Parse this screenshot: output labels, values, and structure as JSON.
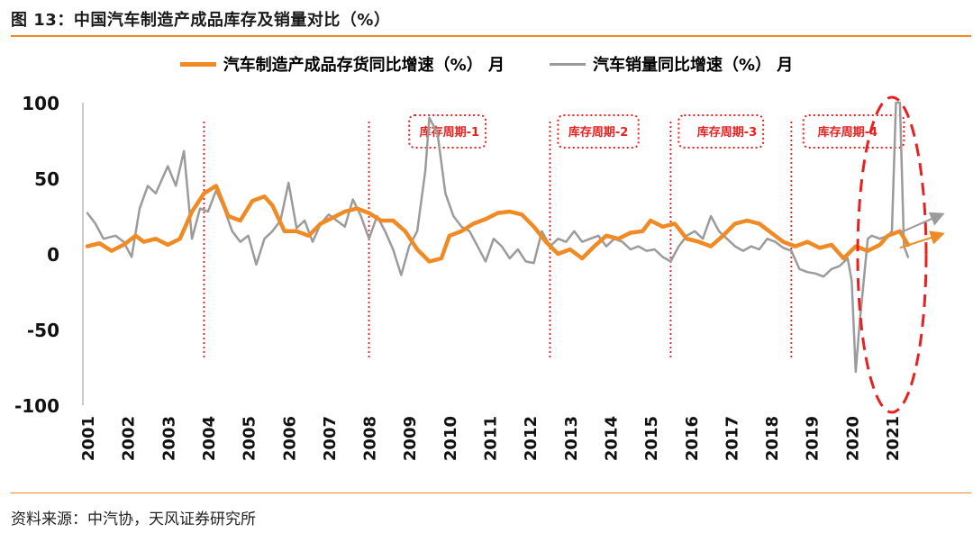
{
  "figure": {
    "title": "图 13：中国汽车制造产成品库存及销量对比（%）",
    "source": "资料来源：中汽协，天风证券研究所"
  },
  "colors": {
    "accent": "#f08a24",
    "inventory": "#f08a24",
    "sales": "#9b9b9b",
    "annotation": "#e8201f"
  },
  "chart_data": {
    "type": "line",
    "title": "",
    "xlabel": "",
    "ylabel": "",
    "ylim": [
      -100,
      100
    ],
    "yticks": [
      "100",
      "50",
      "0",
      "-50",
      "-100"
    ],
    "ytick_values": [
      100,
      50,
      0,
      -50,
      -100
    ],
    "xticks": [
      "2001",
      "2002",
      "2003",
      "2004",
      "2005",
      "2006",
      "2007",
      "2008",
      "2009",
      "2010",
      "2011",
      "2012",
      "2013",
      "2014",
      "2015",
      "2016",
      "2017",
      "2018",
      "2019",
      "2020",
      "2021"
    ],
    "legend_position": "top-center",
    "grid": false,
    "series": [
      {
        "name": "汽车制造产成品存货同比增速（%） 月",
        "color": "#f08a24",
        "points": [
          [
            2001.0,
            5
          ],
          [
            2001.3,
            7
          ],
          [
            2001.6,
            2
          ],
          [
            2001.9,
            6
          ],
          [
            2002.2,
            12
          ],
          [
            2002.4,
            8
          ],
          [
            2002.7,
            10
          ],
          [
            2003.0,
            6
          ],
          [
            2003.3,
            10
          ],
          [
            2003.6,
            28
          ],
          [
            2003.9,
            40
          ],
          [
            2004.2,
            45
          ],
          [
            2004.5,
            25
          ],
          [
            2004.8,
            22
          ],
          [
            2005.1,
            35
          ],
          [
            2005.4,
            38
          ],
          [
            2005.6,
            32
          ],
          [
            2005.9,
            15
          ],
          [
            2006.2,
            15
          ],
          [
            2006.5,
            12
          ],
          [
            2006.8,
            20
          ],
          [
            2007.1,
            24
          ],
          [
            2007.4,
            28
          ],
          [
            2007.7,
            30
          ],
          [
            2008.0,
            27
          ],
          [
            2008.3,
            22
          ],
          [
            2008.6,
            22
          ],
          [
            2008.9,
            15
          ],
          [
            2009.2,
            3
          ],
          [
            2009.5,
            -5
          ],
          [
            2009.8,
            -3
          ],
          [
            2010.0,
            12
          ],
          [
            2010.3,
            15
          ],
          [
            2010.6,
            20
          ],
          [
            2010.9,
            23
          ],
          [
            2011.2,
            27
          ],
          [
            2011.5,
            28
          ],
          [
            2011.8,
            26
          ],
          [
            2012.1,
            18
          ],
          [
            2012.4,
            8
          ],
          [
            2012.7,
            0
          ],
          [
            2013.0,
            3
          ],
          [
            2013.3,
            -3
          ],
          [
            2013.6,
            5
          ],
          [
            2013.9,
            12
          ],
          [
            2014.2,
            10
          ],
          [
            2014.5,
            14
          ],
          [
            2014.8,
            15
          ],
          [
            2015.0,
            22
          ],
          [
            2015.3,
            18
          ],
          [
            2015.6,
            20
          ],
          [
            2015.9,
            10
          ],
          [
            2016.2,
            8
          ],
          [
            2016.5,
            5
          ],
          [
            2016.8,
            12
          ],
          [
            2017.1,
            20
          ],
          [
            2017.4,
            22
          ],
          [
            2017.7,
            20
          ],
          [
            2018.0,
            14
          ],
          [
            2018.3,
            8
          ],
          [
            2018.6,
            5
          ],
          [
            2018.9,
            8
          ],
          [
            2019.2,
            4
          ],
          [
            2019.5,
            6
          ],
          [
            2019.8,
            -3
          ],
          [
            2020.1,
            5
          ],
          [
            2020.4,
            2
          ],
          [
            2020.7,
            6
          ],
          [
            2020.9,
            12
          ],
          [
            2021.2,
            15
          ],
          [
            2021.4,
            6
          ]
        ]
      },
      {
        "name": "汽车销量同比增速（%） 月",
        "color": "#9b9b9b",
        "points": [
          [
            2001.0,
            27
          ],
          [
            2001.2,
            20
          ],
          [
            2001.4,
            10
          ],
          [
            2001.7,
            12
          ],
          [
            2001.9,
            8
          ],
          [
            2002.1,
            -2
          ],
          [
            2002.3,
            30
          ],
          [
            2002.5,
            45
          ],
          [
            2002.7,
            40
          ],
          [
            2002.9,
            52
          ],
          [
            2003.0,
            58
          ],
          [
            2003.2,
            45
          ],
          [
            2003.4,
            68
          ],
          [
            2003.6,
            10
          ],
          [
            2003.8,
            30
          ],
          [
            2004.0,
            28
          ],
          [
            2004.2,
            42
          ],
          [
            2004.4,
            30
          ],
          [
            2004.6,
            15
          ],
          [
            2004.8,
            8
          ],
          [
            2005.0,
            12
          ],
          [
            2005.2,
            -7
          ],
          [
            2005.4,
            10
          ],
          [
            2005.6,
            15
          ],
          [
            2005.8,
            22
          ],
          [
            2006.0,
            47
          ],
          [
            2006.2,
            17
          ],
          [
            2006.4,
            22
          ],
          [
            2006.6,
            8
          ],
          [
            2006.8,
            20
          ],
          [
            2007.0,
            26
          ],
          [
            2007.2,
            22
          ],
          [
            2007.4,
            18
          ],
          [
            2007.6,
            36
          ],
          [
            2007.8,
            25
          ],
          [
            2008.0,
            10
          ],
          [
            2008.2,
            25
          ],
          [
            2008.4,
            15
          ],
          [
            2008.6,
            3
          ],
          [
            2008.8,
            -14
          ],
          [
            2009.0,
            5
          ],
          [
            2009.2,
            15
          ],
          [
            2009.4,
            55
          ],
          [
            2009.5,
            90
          ],
          [
            2009.7,
            80
          ],
          [
            2009.9,
            40
          ],
          [
            2010.1,
            25
          ],
          [
            2010.3,
            18
          ],
          [
            2010.5,
            15
          ],
          [
            2010.7,
            5
          ],
          [
            2010.9,
            -5
          ],
          [
            2011.1,
            10
          ],
          [
            2011.3,
            5
          ],
          [
            2011.5,
            -3
          ],
          [
            2011.7,
            3
          ],
          [
            2011.9,
            -5
          ],
          [
            2012.1,
            -6
          ],
          [
            2012.3,
            15
          ],
          [
            2012.5,
            5
          ],
          [
            2012.7,
            10
          ],
          [
            2012.9,
            8
          ],
          [
            2013.1,
            15
          ],
          [
            2013.3,
            8
          ],
          [
            2013.5,
            10
          ],
          [
            2013.7,
            12
          ],
          [
            2013.9,
            5
          ],
          [
            2014.1,
            10
          ],
          [
            2014.3,
            8
          ],
          [
            2014.5,
            3
          ],
          [
            2014.7,
            5
          ],
          [
            2014.9,
            2
          ],
          [
            2015.1,
            3
          ],
          [
            2015.3,
            -2
          ],
          [
            2015.5,
            -5
          ],
          [
            2015.7,
            5
          ],
          [
            2015.9,
            12
          ],
          [
            2016.1,
            15
          ],
          [
            2016.3,
            10
          ],
          [
            2016.5,
            25
          ],
          [
            2016.7,
            15
          ],
          [
            2016.9,
            10
          ],
          [
            2017.1,
            5
          ],
          [
            2017.3,
            2
          ],
          [
            2017.5,
            5
          ],
          [
            2017.7,
            3
          ],
          [
            2017.9,
            10
          ],
          [
            2018.1,
            8
          ],
          [
            2018.3,
            4
          ],
          [
            2018.5,
            2
          ],
          [
            2018.7,
            -10
          ],
          [
            2018.9,
            -12
          ],
          [
            2019.1,
            -13
          ],
          [
            2019.3,
            -15
          ],
          [
            2019.5,
            -10
          ],
          [
            2019.7,
            -8
          ],
          [
            2019.9,
            -3
          ],
          [
            2020.0,
            -18
          ],
          [
            2020.1,
            -78
          ],
          [
            2020.2,
            -45
          ],
          [
            2020.4,
            10
          ],
          [
            2020.5,
            12
          ],
          [
            2020.7,
            10
          ],
          [
            2020.9,
            12
          ],
          [
            2021.0,
            15
          ],
          [
            2021.1,
            100
          ],
          [
            2021.2,
            100
          ],
          [
            2021.3,
            5
          ],
          [
            2021.4,
            -2
          ]
        ]
      }
    ],
    "annotations": [
      {
        "label": "库存周期-1",
        "text_x": 2010.0,
        "box_from": 2009.0,
        "box_to": 2010.9
      },
      {
        "label": "库存周期-2",
        "text_x": 2013.7,
        "box_from": 2012.7,
        "box_to": 2014.7
      },
      {
        "label": "库存周期-3",
        "text_x": 2016.9,
        "box_from": 2015.7,
        "box_to": 2017.8
      },
      {
        "label": "库存周期-4",
        "text_x": 2019.9,
        "box_from": 2018.8,
        "box_to": 2021.3
      }
    ],
    "cycle_dividers": [
      2003.9,
      2008.0,
      2012.5,
      2015.5,
      2018.5
    ]
  }
}
